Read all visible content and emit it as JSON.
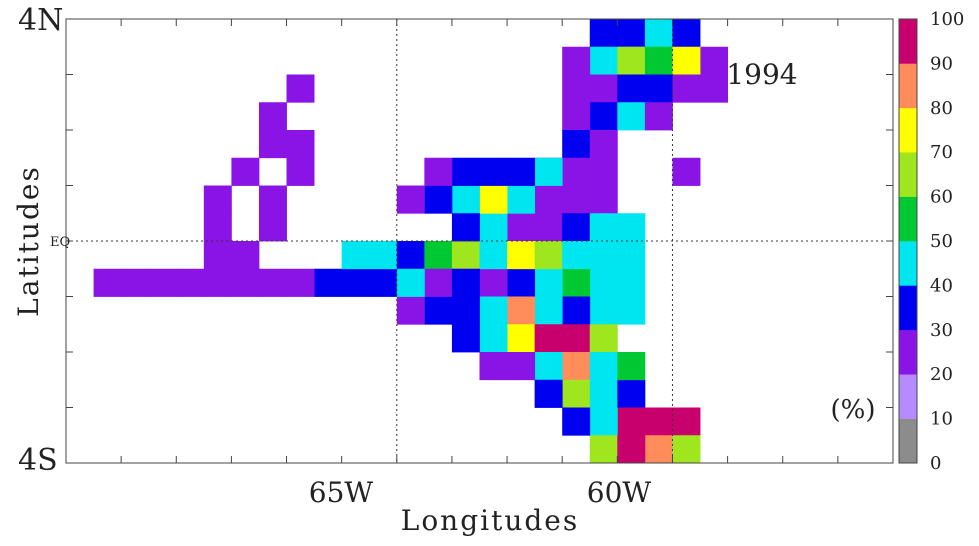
{
  "chart_data": {
    "type": "heatmap",
    "year_label": "1994",
    "xlabel": "Longitudes",
    "ylabel": "Latitudes",
    "x_ticks": [
      {
        "value": -65,
        "label": "65W"
      },
      {
        "value": -60,
        "label": "60W"
      }
    ],
    "y_ticks": [
      {
        "value": 4,
        "label": "4N"
      },
      {
        "value": 0,
        "label": "EQ"
      },
      {
        "value": -4,
        "label": "4S"
      }
    ],
    "xlim": [
      -71,
      -56
    ],
    "ylim": [
      -4,
      4
    ],
    "grid": "dotted lines at 65W, 60W and EQ",
    "cell_size_deg": 0.5,
    "colorbar": {
      "unit_label": "(%)",
      "ticks": [
        "0",
        "10",
        "20",
        "30",
        "40",
        "50",
        "60",
        "70",
        "80",
        "90",
        "100"
      ],
      "colors": [
        "#8c8c8c",
        "#b48cff",
        "#8a14e6",
        "#0000f0",
        "#00e6f0",
        "#00c832",
        "#a0e61e",
        "#ffff00",
        "#ff8c5a",
        "#c8006e"
      ]
    },
    "cells_format": "[longitude_center, latitude_center, coverage_percent]",
    "cells": [
      [
        -60.75,
        3.75,
        30
      ],
      [
        -60.25,
        3.75,
        40
      ],
      [
        -60.75,
        3.25,
        40
      ],
      [
        -60.25,
        3.25,
        40
      ],
      [
        -59.75,
        3.25,
        30
      ],
      [
        -61.25,
        3.25,
        20
      ],
      [
        -59.25,
        3.25,
        20
      ],
      [
        -59.75,
        3.75,
        30
      ],
      [
        -61.25,
        3.75,
        30
      ],
      [
        -61.25,
        3.25,
        40
      ],
      [
        -61.25,
        2.75,
        20
      ],
      [
        -60.75,
        3.25,
        60
      ],
      [
        -60.25,
        3.25,
        50
      ],
      [
        -59.75,
        3.25,
        70
      ],
      [
        -60.25,
        2.75,
        30
      ],
      [
        -59.75,
        2.75,
        20
      ],
      [
        -59.25,
        2.75,
        20
      ],
      [
        -60.75,
        2.75,
        30
      ],
      [
        -61.75,
        3.25,
        20
      ],
      [
        -61.75,
        2.75,
        20
      ],
      [
        -61.25,
        2.25,
        30
      ],
      [
        -60.75,
        2.25,
        40
      ],
      [
        -61.75,
        2.25,
        20
      ],
      [
        -61.75,
        1.75,
        30
      ],
      [
        -61.25,
        1.75,
        20
      ],
      [
        -61.25,
        1.25,
        20
      ],
      [
        -60.25,
        2.25,
        20
      ],
      [
        -59.75,
        1.25,
        20
      ],
      [
        -61.75,
        1.25,
        20
      ],
      [
        -62.25,
        1.25,
        20
      ],
      [
        -61.75,
        0.75,
        20
      ],
      [
        -62.25,
        0.75,
        20
      ],
      [
        -61.25,
        0.75,
        20
      ],
      [
        -62.25,
        0.25,
        20
      ],
      [
        -61.75,
        0.25,
        30
      ],
      [
        -61.25,
        0.25,
        40
      ],
      [
        -60.75,
        0.25,
        40
      ],
      [
        -62.75,
        0.25,
        20
      ],
      [
        -63.25,
        0.25,
        20
      ],
      [
        -61.75,
        -0.25,
        40
      ],
      [
        -61.25,
        -0.25,
        40
      ],
      [
        -60.75,
        -0.25,
        40
      ],
      [
        -62.25,
        -0.25,
        40
      ],
      [
        -62.75,
        -0.25,
        30
      ],
      [
        -63.25,
        -0.25,
        20
      ],
      [
        -61.25,
        -0.75,
        40
      ],
      [
        -60.75,
        -0.75,
        40
      ],
      [
        -61.75,
        -0.75,
        50
      ],
      [
        -62.25,
        -0.75,
        40
      ],
      [
        -62.75,
        -0.75,
        30
      ],
      [
        -63.25,
        -0.75,
        20
      ],
      [
        -60.75,
        -1.25,
        40
      ],
      [
        -61.25,
        -1.25,
        40
      ],
      [
        -61.75,
        -1.25,
        30
      ],
      [
        -62.25,
        -1.25,
        40
      ],
      [
        -62.75,
        -1.25,
        80
      ],
      [
        -63.25,
        -1.25,
        40
      ],
      [
        -63.75,
        -1.25,
        30
      ],
      [
        -64.25,
        -1.25,
        30
      ],
      [
        -64.75,
        -1.25,
        20
      ],
      [
        -65.25,
        -0.75,
        30
      ],
      [
        -65.75,
        -0.75,
        30
      ],
      [
        -66.25,
        -0.75,
        30
      ],
      [
        -66.75,
        -0.75,
        20
      ],
      [
        -67.25,
        -0.75,
        20
      ],
      [
        -67.75,
        -0.75,
        20
      ],
      [
        -68.25,
        -0.75,
        20
      ],
      [
        -68.75,
        -0.75,
        20
      ],
      [
        -69.25,
        -0.75,
        20
      ],
      [
        -69.75,
        -0.75,
        20
      ],
      [
        -70.25,
        -0.75,
        20
      ],
      [
        -68.25,
        -0.25,
        20
      ],
      [
        -67.75,
        -0.25,
        20
      ],
      [
        -68.25,
        0.25,
        20
      ],
      [
        -67.25,
        0.25,
        20
      ],
      [
        -67.25,
        0.75,
        20
      ],
      [
        -66.75,
        1.25,
        20
      ],
      [
        -66.75,
        1.75,
        20
      ],
      [
        -67.25,
        1.75,
        20
      ],
      [
        -67.25,
        2.25,
        20
      ],
      [
        -67.75,
        1.25,
        20
      ],
      [
        -68.25,
        0.75,
        20
      ],
      [
        -66.75,
        2.75,
        20
      ],
      [
        -65.75,
        -0.25,
        40
      ],
      [
        -65.25,
        -0.25,
        40
      ],
      [
        -64.75,
        -0.25,
        30
      ],
      [
        -64.25,
        -0.25,
        50
      ],
      [
        -63.75,
        -0.25,
        60
      ],
      [
        -63.25,
        0.25,
        40
      ],
      [
        -62.75,
        0.75,
        40
      ],
      [
        -63.25,
        0.75,
        70
      ],
      [
        -63.75,
        0.75,
        40
      ],
      [
        -64.25,
        0.75,
        30
      ],
      [
        -64.75,
        0.75,
        20
      ],
      [
        -62.25,
        1.25,
        40
      ],
      [
        -62.75,
        1.25,
        30
      ],
      [
        -63.25,
        1.25,
        30
      ],
      [
        -63.75,
        1.25,
        30
      ],
      [
        -64.25,
        1.25,
        20
      ],
      [
        -63.75,
        0.25,
        30
      ],
      [
        -63.25,
        -0.25,
        40
      ],
      [
        -62.75,
        -0.25,
        70
      ],
      [
        -62.25,
        -0.25,
        60
      ],
      [
        -61.75,
        -0.25,
        40
      ],
      [
        -64.25,
        -0.75,
        20
      ],
      [
        -63.75,
        -0.75,
        30
      ],
      [
        -64.75,
        -0.75,
        40
      ],
      [
        -62.75,
        -1.75,
        70
      ],
      [
        -62.25,
        -1.75,
        90
      ],
      [
        -61.75,
        -1.75,
        90
      ],
      [
        -61.25,
        -1.75,
        60
      ],
      [
        -63.25,
        -1.75,
        40
      ],
      [
        -61.75,
        -2.25,
        80
      ],
      [
        -61.25,
        -2.25,
        40
      ],
      [
        -62.25,
        -2.25,
        40
      ],
      [
        -61.75,
        -2.75,
        60
      ],
      [
        -61.25,
        -2.75,
        40
      ],
      [
        -60.75,
        -2.75,
        30
      ],
      [
        -60.75,
        -3.25,
        90
      ],
      [
        -60.25,
        -3.25,
        90
      ],
      [
        -59.75,
        -3.25,
        90
      ],
      [
        -60.25,
        -3.75,
        80
      ],
      [
        -59.75,
        -3.75,
        60
      ],
      [
        -61.25,
        -3.25,
        40
      ],
      [
        -60.75,
        -2.25,
        50
      ],
      [
        -61.25,
        -3.75,
        60
      ],
      [
        -60.75,
        -3.75,
        90
      ],
      [
        -61.75,
        -3.25,
        30
      ],
      [
        -62.25,
        -2.75,
        30
      ],
      [
        -62.75,
        -2.25,
        20
      ],
      [
        -63.25,
        -2.25,
        20
      ],
      [
        -63.75,
        -1.75,
        30
      ]
    ]
  }
}
